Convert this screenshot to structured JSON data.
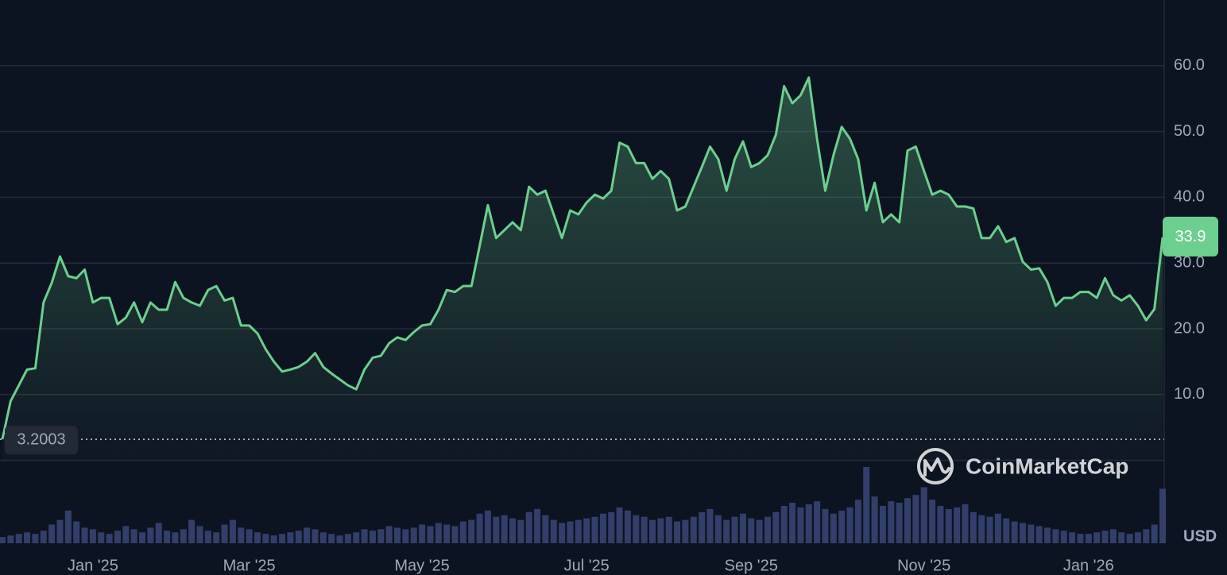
{
  "chart_data": {
    "type": "area",
    "watermark": "CoinMarketCap",
    "currency": "USD",
    "color": "#6ccf8f",
    "volume_color": "#3a4677",
    "ylim": [
      0,
      70
    ],
    "yticks": [
      {
        "value": 10,
        "label": "10.0"
      },
      {
        "value": 20,
        "label": "20.0"
      },
      {
        "value": 30,
        "label": "30.0"
      },
      {
        "value": 40,
        "label": "40.0"
      },
      {
        "value": 50,
        "label": "50.0"
      },
      {
        "value": 60,
        "label": "60.0"
      }
    ],
    "grid": true,
    "categories": [
      null,
      null,
      null,
      null,
      null,
      null,
      null,
      null,
      null,
      null,
      null,
      "Jan '25",
      null,
      null,
      null,
      null,
      null,
      null,
      null,
      null,
      null,
      null,
      null,
      null,
      null,
      null,
      null,
      null,
      null,
      null,
      "Mar '25",
      null,
      null,
      null,
      null,
      null,
      null,
      null,
      null,
      null,
      null,
      null,
      null,
      null,
      null,
      null,
      null,
      null,
      null,
      null,
      null,
      "May '25",
      null,
      null,
      null,
      null,
      null,
      null,
      null,
      null,
      null,
      null,
      null,
      null,
      null,
      null,
      null,
      null,
      null,
      null,
      null,
      "Jul '25",
      null,
      null,
      null,
      null,
      null,
      null,
      null,
      null,
      null,
      null,
      null,
      null,
      null,
      null,
      null,
      null,
      null,
      null,
      null,
      "Sep '25",
      null,
      null,
      null,
      null,
      null,
      null,
      null,
      null,
      null,
      null,
      null,
      null,
      null,
      null,
      null,
      null,
      null,
      null,
      null,
      null,
      "Nov '25",
      null,
      null,
      null,
      null,
      null,
      null,
      null,
      null,
      null,
      null,
      null,
      null,
      null,
      null,
      null,
      null,
      null,
      null,
      null,
      "Jan '26",
      null,
      null,
      null,
      null,
      null,
      null,
      null,
      null,
      null
    ],
    "values": [
      3.2003,
      9.0,
      11.4,
      13.8,
      14.0,
      24.0,
      27.0,
      31.0,
      28.0,
      27.7,
      29.0,
      24.0,
      24.7,
      24.7,
      20.7,
      21.7,
      24.0,
      21.0,
      24.0,
      22.9,
      22.9,
      27.1,
      24.7,
      24.0,
      23.5,
      25.9,
      26.5,
      24.3,
      24.7,
      20.5,
      20.5,
      19.3,
      16.9,
      15.0,
      13.5,
      13.8,
      14.2,
      15.0,
      16.3,
      14.2,
      13.2,
      12.3,
      11.4,
      10.8,
      13.8,
      15.6,
      15.9,
      17.8,
      18.7,
      18.3,
      19.5,
      20.5,
      20.7,
      22.9,
      25.9,
      25.6,
      26.5,
      26.5,
      32.6,
      38.8,
      33.8,
      35.0,
      36.2,
      35.0,
      41.6,
      40.4,
      41.0,
      37.4,
      33.8,
      38.0,
      37.4,
      39.2,
      40.4,
      39.8,
      41.0,
      48.3,
      47.7,
      45.2,
      45.2,
      42.8,
      44.0,
      42.8,
      38.0,
      38.6,
      41.6,
      44.6,
      47.7,
      45.8,
      41.0,
      45.8,
      48.5,
      44.6,
      45.2,
      46.4,
      49.5,
      56.9,
      54.3,
      55.5,
      58.2,
      48.9,
      41.0,
      46.4,
      50.7,
      48.9,
      45.8,
      38.0,
      42.2,
      36.2,
      37.4,
      36.2,
      47.1,
      47.7,
      44.0,
      40.4,
      41.0,
      40.4,
      38.6,
      38.6,
      38.3,
      33.8,
      33.8,
      35.6,
      33.2,
      33.8,
      30.2,
      29.0,
      29.2,
      27.1,
      23.5,
      24.7,
      24.7,
      25.6,
      25.6,
      24.7,
      27.7,
      25.1,
      24.3,
      25.1,
      23.5,
      21.3,
      23.0,
      33.9
    ],
    "volume": [
      8,
      10,
      12,
      14,
      12,
      16,
      24,
      30,
      42,
      28,
      20,
      18,
      14,
      12,
      16,
      22,
      18,
      14,
      20,
      26,
      16,
      14,
      18,
      30,
      22,
      16,
      14,
      24,
      30,
      20,
      18,
      14,
      12,
      10,
      12,
      14,
      16,
      20,
      18,
      14,
      12,
      10,
      12,
      14,
      18,
      16,
      18,
      22,
      20,
      18,
      20,
      24,
      22,
      26,
      24,
      22,
      28,
      30,
      38,
      42,
      34,
      36,
      32,
      30,
      40,
      44,
      36,
      30,
      26,
      28,
      30,
      32,
      34,
      38,
      40,
      46,
      42,
      36,
      34,
      30,
      32,
      34,
      28,
      30,
      34,
      40,
      44,
      36,
      30,
      34,
      38,
      32,
      30,
      34,
      40,
      48,
      52,
      46,
      50,
      54,
      44,
      38,
      42,
      46,
      56,
      98,
      60,
      48,
      54,
      52,
      58,
      62,
      72,
      56,
      48,
      44,
      46,
      50,
      40,
      36,
      34,
      38,
      32,
      28,
      26,
      24,
      22,
      20,
      18,
      16,
      14,
      12,
      12,
      14,
      16,
      18,
      14,
      12,
      14,
      18,
      24,
      70
    ]
  }
}
